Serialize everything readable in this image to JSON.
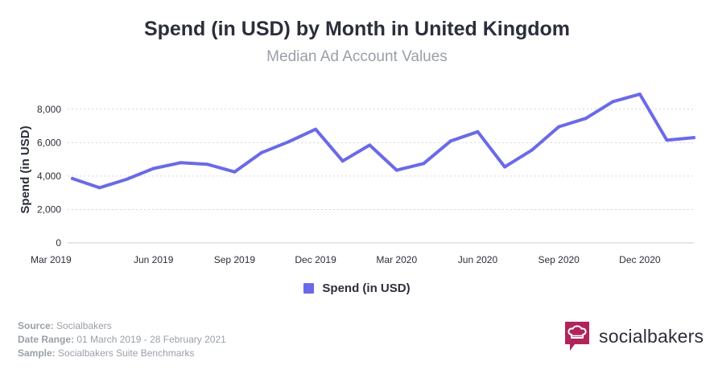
{
  "chart_data": {
    "type": "line",
    "title": "Spend (in USD) by Month in United Kingdom",
    "subtitle": "Median Ad Account Values",
    "ylabel": "Spend (in USD)",
    "xlabel": "",
    "ylim": [
      0,
      9000
    ],
    "yticks": [
      0,
      2000,
      4000,
      6000,
      8000
    ],
    "ytick_labels": [
      "0",
      "2,000",
      "4,000",
      "6,000",
      "8,000"
    ],
    "x": [
      "Mar 2019",
      "Apr 2019",
      "May 2019",
      "Jun 2019",
      "Jul 2019",
      "Aug 2019",
      "Sep 2019",
      "Oct 2019",
      "Nov 2019",
      "Dec 2019",
      "Jan 2020",
      "Feb 2020",
      "Mar 2020",
      "Apr 2020",
      "May 2020",
      "Jun 2020",
      "Jul 2020",
      "Aug 2020",
      "Sep 2020",
      "Oct 2020",
      "Nov 2020",
      "Dec 2020",
      "Jan 2021",
      "Feb 2021"
    ],
    "xtick_labels": [
      "Mar 2019",
      "Jun 2019",
      "Sep 2019",
      "Dec 2019",
      "Mar 2020",
      "Jun 2020",
      "Sep 2020",
      "Dec 2020"
    ],
    "series": [
      {
        "name": "Spend (in USD)",
        "color": "#6a6ae8",
        "values": [
          3850,
          3300,
          3800,
          4450,
          4800,
          4700,
          4250,
          5400,
          6050,
          6800,
          4900,
          5850,
          4350,
          4750,
          6100,
          6650,
          4550,
          5550,
          6950,
          7450,
          8450,
          8900,
          6150,
          6300
        ]
      }
    ],
    "grid": true,
    "legend_position": "bottom-center"
  },
  "footer": {
    "source_label": "Source:",
    "source_value": "Socialbakers",
    "date_label": "Date Range:",
    "date_value": "01 March 2019 - 28 February 2021",
    "sample_label": "Sample:",
    "sample_value": "Socialbakers Suite Benchmarks"
  },
  "brand": {
    "name": "socialbakers",
    "icon": "chef-hat-speech-bubble-icon",
    "color": "#b0245c"
  }
}
